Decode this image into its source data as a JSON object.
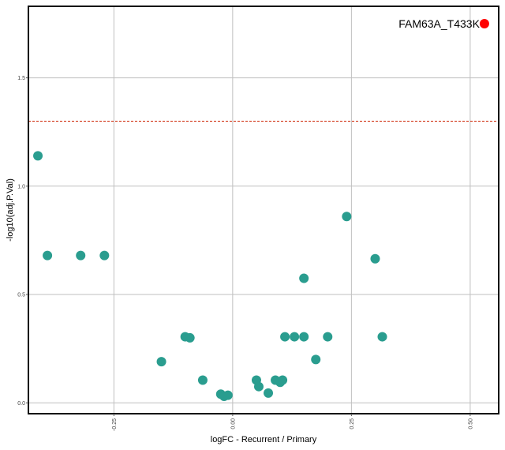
{
  "chart_data": {
    "type": "scatter",
    "xlabel": "logFC - Recurrent / Primary",
    "ylabel": "-log10(adj.P.Val)",
    "xlim": [
      -0.43,
      0.56
    ],
    "ylim": [
      -0.05,
      1.83
    ],
    "x_ticks": [
      -0.25,
      0.0,
      0.25,
      0.5
    ],
    "x_tick_labels": [
      "-0.25",
      "0.00",
      "0.25",
      "0.50"
    ],
    "y_ticks": [
      0.0,
      0.5,
      1.0,
      1.5
    ],
    "y_tick_labels": [
      "0.0",
      "0.5",
      "1.0",
      "1.5"
    ],
    "grid": true,
    "threshold_line": {
      "y": 1.3,
      "color": "#cc2200",
      "style": "dashed"
    },
    "series": [
      {
        "color": "#2a9d8f",
        "points": [
          {
            "x": -0.41,
            "y": 1.14
          },
          {
            "x": -0.39,
            "y": 0.68
          },
          {
            "x": -0.32,
            "y": 0.68
          },
          {
            "x": -0.27,
            "y": 0.68
          },
          {
            "x": -0.15,
            "y": 0.19
          },
          {
            "x": -0.1,
            "y": 0.305
          },
          {
            "x": -0.09,
            "y": 0.3
          },
          {
            "x": -0.063,
            "y": 0.105
          },
          {
            "x": -0.025,
            "y": 0.04
          },
          {
            "x": -0.018,
            "y": 0.03
          },
          {
            "x": -0.01,
            "y": 0.035
          },
          {
            "x": 0.05,
            "y": 0.105
          },
          {
            "x": 0.055,
            "y": 0.075
          },
          {
            "x": 0.075,
            "y": 0.045
          },
          {
            "x": 0.09,
            "y": 0.105
          },
          {
            "x": 0.1,
            "y": 0.095
          },
          {
            "x": 0.105,
            "y": 0.105
          },
          {
            "x": 0.11,
            "y": 0.305
          },
          {
            "x": 0.13,
            "y": 0.305
          },
          {
            "x": 0.15,
            "y": 0.305
          },
          {
            "x": 0.15,
            "y": 0.575
          },
          {
            "x": 0.175,
            "y": 0.2
          },
          {
            "x": 0.2,
            "y": 0.305
          },
          {
            "x": 0.24,
            "y": 0.86
          },
          {
            "x": 0.3,
            "y": 0.665
          },
          {
            "x": 0.315,
            "y": 0.305
          }
        ]
      },
      {
        "color": "#ff0000",
        "points": [
          {
            "x": 0.53,
            "y": 1.75,
            "label": "FAM63A_T433K"
          }
        ]
      }
    ]
  }
}
